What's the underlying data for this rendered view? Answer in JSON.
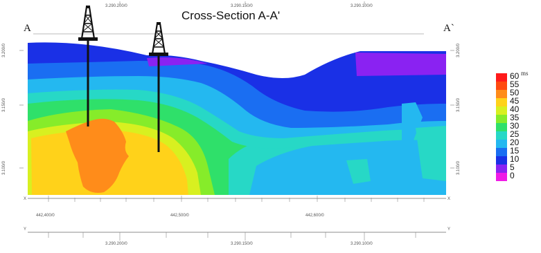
{
  "figure": {
    "title": "Cross-Section A-A'",
    "left_label": "A",
    "right_label": "A`",
    "top_ticks": [
      "3.290.200/0",
      "3.290.150/0",
      "3.290.100/0"
    ],
    "left_ticks": [
      "3.200/0",
      "3.150/0",
      "3.100/0"
    ],
    "right_ticks": [
      "3.200/0",
      "3.150/0",
      "3.100/0"
    ],
    "x_axis_label": "X",
    "x_ticks": [
      "442,400/0",
      "442,500/0",
      "442,600/0"
    ],
    "y_axis_label": "Y",
    "y_ticks": [
      "3.290.200/0",
      "3.290.150/0",
      "3.290.100/0"
    ],
    "wells": [
      "well-1",
      "well-2"
    ]
  },
  "legend": {
    "unit": "ms",
    "entries": [
      {
        "label": "60",
        "color": "#ff1a1a"
      },
      {
        "label": "55",
        "color": "#ff4a10"
      },
      {
        "label": "50",
        "color": "#ff8c1a"
      },
      {
        "label": "45",
        "color": "#ffd21a"
      },
      {
        "label": "40",
        "color": "#d8f020"
      },
      {
        "label": "35",
        "color": "#86ec2a"
      },
      {
        "label": "30",
        "color": "#2fe06a"
      },
      {
        "label": "25",
        "color": "#27d8c6"
      },
      {
        "label": "20",
        "color": "#24b8f0"
      },
      {
        "label": "15",
        "color": "#1a6ef2"
      },
      {
        "label": "10",
        "color": "#1a30e6"
      },
      {
        "label": "5",
        "color": "#8a22f2"
      },
      {
        "label": "0",
        "color": "#f01ae6"
      }
    ]
  }
}
